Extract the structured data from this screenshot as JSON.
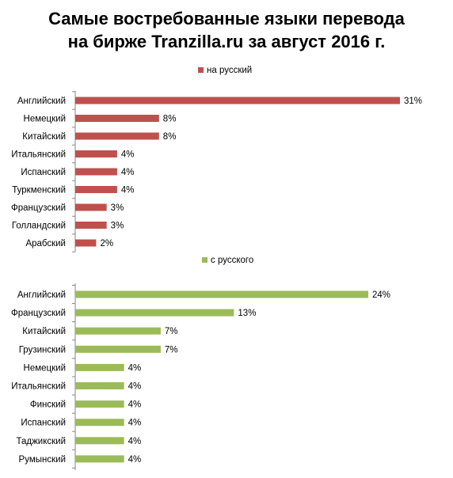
{
  "title": {
    "line1": "Самые востребованные языки перевода",
    "line2": "на бирже Tranzilla.ru за август 2016 г."
  },
  "chart_data": [
    {
      "type": "bar",
      "orientation": "horizontal",
      "legend": "на русский",
      "legend_position": "top",
      "color": "#C0504D",
      "categories": [
        "Английский",
        "Немецкий",
        "Китайский",
        "Итальянский",
        "Испанский",
        "Туркменский",
        "Французский",
        "Голландский",
        "Арабский"
      ],
      "values": [
        31,
        8,
        8,
        4,
        4,
        4,
        3,
        3,
        2
      ],
      "value_labels": [
        "31%",
        "8%",
        "8%",
        "4%",
        "4%",
        "4%",
        "3%",
        "3%",
        "2%"
      ],
      "unit": "%",
      "xlim": [
        0,
        31
      ],
      "grid": false
    },
    {
      "type": "bar",
      "orientation": "horizontal",
      "legend": "с русского",
      "legend_position": "top",
      "color": "#9BBB59",
      "categories": [
        "Английский",
        "Французский",
        "Китайский",
        "Грузинский",
        "Немецкий",
        "Итальянский",
        "Финский",
        "Испанский",
        "Таджикский",
        "Румынский"
      ],
      "values": [
        24,
        13,
        7,
        7,
        4,
        4,
        4,
        4,
        4,
        4
      ],
      "value_labels": [
        "24%",
        "13%",
        "7%",
        "7%",
        "4%",
        "4%",
        "4%",
        "4%",
        "4%",
        "4%"
      ],
      "unit": "%",
      "xlim": [
        0,
        24
      ],
      "grid": false
    }
  ]
}
